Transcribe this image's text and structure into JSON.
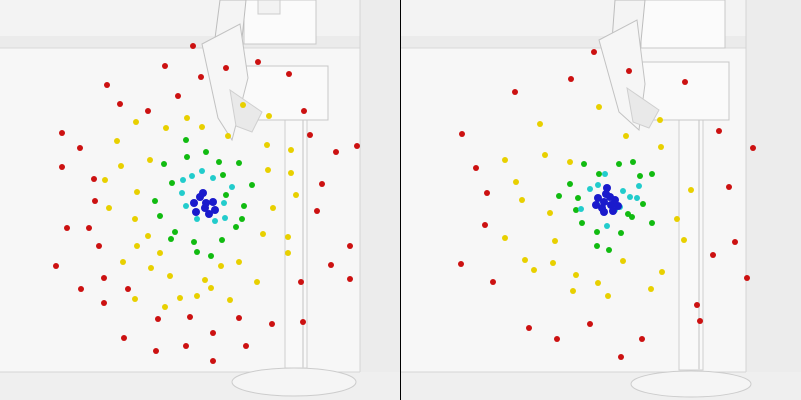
{
  "colors": {
    "background": "#f3f3f3",
    "wall": "#f7f7f7",
    "shadow": "#dcdcdc",
    "divider": "#000000",
    "dot_red": "#cc1111",
    "dot_yellow": "#e8d000",
    "dot_green": "#11bb11",
    "dot_cyan": "#22cccc",
    "dot_blue": "#1a1acc"
  },
  "panels": [
    {
      "name": "left",
      "dots": {
        "red": [
          [
            193,
            46
          ],
          [
            165,
            66
          ],
          [
            201,
            77
          ],
          [
            226,
            68
          ],
          [
            258,
            62
          ],
          [
            289,
            74
          ],
          [
            107,
            85
          ],
          [
            120,
            104
          ],
          [
            178,
            96
          ],
          [
            304,
            111
          ],
          [
            62,
            133
          ],
          [
            80,
            148
          ],
          [
            148,
            111
          ],
          [
            310,
            135
          ],
          [
            357,
            146
          ],
          [
            62,
            167
          ],
          [
            94,
            179
          ],
          [
            336,
            152
          ],
          [
            322,
            184
          ],
          [
            95,
            201
          ],
          [
            317,
            211
          ],
          [
            67,
            228
          ],
          [
            89,
            228
          ],
          [
            350,
            246
          ],
          [
            99,
            246
          ],
          [
            331,
            265
          ],
          [
            56,
            266
          ],
          [
            104,
            278
          ],
          [
            81,
            289
          ],
          [
            350,
            279
          ],
          [
            128,
            289
          ],
          [
            301,
            282
          ],
          [
            104,
            303
          ],
          [
            303,
            322
          ],
          [
            158,
            319
          ],
          [
            190,
            317
          ],
          [
            124,
            338
          ],
          [
            239,
            318
          ],
          [
            213,
            333
          ],
          [
            186,
            346
          ],
          [
            156,
            351
          ],
          [
            246,
            346
          ],
          [
            213,
            361
          ],
          [
            272,
            324
          ]
        ],
        "yellow": [
          [
            243,
            105
          ],
          [
            269,
            116
          ],
          [
            136,
            122
          ],
          [
            187,
            118
          ],
          [
            166,
            128
          ],
          [
            202,
            127
          ],
          [
            228,
            136
          ],
          [
            117,
            141
          ],
          [
            267,
            145
          ],
          [
            291,
            150
          ],
          [
            150,
            160
          ],
          [
            121,
            166
          ],
          [
            268,
            170
          ],
          [
            291,
            173
          ],
          [
            105,
            180
          ],
          [
            137,
            192
          ],
          [
            296,
            195
          ],
          [
            109,
            208
          ],
          [
            273,
            208
          ],
          [
            135,
            219
          ],
          [
            263,
            234
          ],
          [
            148,
            236
          ],
          [
            288,
            237
          ],
          [
            137,
            246
          ],
          [
            123,
            262
          ],
          [
            160,
            253
          ],
          [
            288,
            253
          ],
          [
            151,
            268
          ],
          [
            239,
            262
          ],
          [
            170,
            276
          ],
          [
            221,
            266
          ],
          [
            205,
            280
          ],
          [
            257,
            282
          ],
          [
            135,
            299
          ],
          [
            197,
            296
          ],
          [
            211,
            288
          ],
          [
            180,
            298
          ],
          [
            230,
            300
          ],
          [
            165,
            307
          ]
        ],
        "green": [
          [
            186,
            140
          ],
          [
            206,
            152
          ],
          [
            187,
            157
          ],
          [
            164,
            164
          ],
          [
            219,
            162
          ],
          [
            239,
            163
          ],
          [
            223,
            175
          ],
          [
            172,
            183
          ],
          [
            252,
            185
          ],
          [
            155,
            201
          ],
          [
            160,
            216
          ],
          [
            242,
            219
          ],
          [
            236,
            227
          ],
          [
            175,
            232
          ],
          [
            171,
            239
          ],
          [
            222,
            240
          ],
          [
            194,
            242
          ],
          [
            197,
            252
          ],
          [
            211,
            256
          ],
          [
            244,
            206
          ],
          [
            226,
            195
          ]
        ],
        "cyan": [
          [
            202,
            171
          ],
          [
            192,
            176
          ],
          [
            213,
            178
          ],
          [
            182,
            193
          ],
          [
            232,
            187
          ],
          [
            224,
            203
          ],
          [
            186,
            206
          ],
          [
            197,
            219
          ],
          [
            215,
            221
          ],
          [
            225,
            218
          ],
          [
            183,
            180
          ]
        ],
        "blue": [
          [
            200,
            197
          ],
          [
            206,
            203
          ],
          [
            213,
            202
          ],
          [
            196,
            212
          ],
          [
            209,
            214
          ],
          [
            205,
            208
          ],
          [
            194,
            203
          ],
          [
            215,
            210
          ],
          [
            203,
            193
          ]
        ]
      }
    },
    {
      "name": "right",
      "dots": {
        "red": [
          [
            193,
            52
          ],
          [
            170,
            79
          ],
          [
            228,
            71
          ],
          [
            284,
            82
          ],
          [
            114,
            92
          ],
          [
            61,
            134
          ],
          [
            318,
            131
          ],
          [
            352,
            148
          ],
          [
            75,
            168
          ],
          [
            86,
            193
          ],
          [
            328,
            187
          ],
          [
            84,
            225
          ],
          [
            334,
            242
          ],
          [
            60,
            264
          ],
          [
            92,
            282
          ],
          [
            346,
            278
          ],
          [
            299,
            321
          ],
          [
            128,
            328
          ],
          [
            189,
            324
          ],
          [
            156,
            339
          ],
          [
            241,
            339
          ],
          [
            220,
            357
          ],
          [
            312,
            255
          ],
          [
            296,
            305
          ]
        ],
        "yellow": [
          [
            139,
            124
          ],
          [
            198,
            107
          ],
          [
            259,
            120
          ],
          [
            225,
            136
          ],
          [
            144,
            155
          ],
          [
            169,
            162
          ],
          [
            104,
            160
          ],
          [
            260,
            147
          ],
          [
            115,
            182
          ],
          [
            290,
            190
          ],
          [
            121,
            200
          ],
          [
            276,
            219
          ],
          [
            149,
            213
          ],
          [
            154,
            241
          ],
          [
            283,
            240
          ],
          [
            124,
            260
          ],
          [
            133,
            270
          ],
          [
            152,
            263
          ],
          [
            222,
            261
          ],
          [
            261,
            272
          ],
          [
            175,
            275
          ],
          [
            197,
            283
          ],
          [
            250,
            289
          ],
          [
            172,
            291
          ],
          [
            207,
            296
          ],
          [
            104,
            238
          ]
        ],
        "green": [
          [
            183,
            164
          ],
          [
            198,
            174
          ],
          [
            218,
            164
          ],
          [
            232,
            162
          ],
          [
            169,
            184
          ],
          [
            239,
            176
          ],
          [
            251,
            174
          ],
          [
            175,
            210
          ],
          [
            177,
            198
          ],
          [
            158,
            196
          ],
          [
            242,
            204
          ],
          [
            231,
            217
          ],
          [
            181,
            223
          ],
          [
            196,
            232
          ],
          [
            220,
            233
          ],
          [
            227,
            214
          ],
          [
            251,
            223
          ],
          [
            196,
            246
          ],
          [
            208,
            250
          ]
        ],
        "cyan": [
          [
            204,
            174
          ],
          [
            189,
            189
          ],
          [
            222,
            191
          ],
          [
            238,
            186
          ],
          [
            196,
            204
          ],
          [
            219,
            207
          ],
          [
            229,
            197
          ],
          [
            180,
            209
          ],
          [
            206,
            226
          ],
          [
            214,
            210
          ],
          [
            197,
            185
          ],
          [
            236,
            198
          ]
        ],
        "blue": [
          [
            197,
            198
          ],
          [
            203,
            202
          ],
          [
            210,
            205
          ],
          [
            205,
            194
          ],
          [
            214,
            200
          ],
          [
            201,
            208
          ],
          [
            209,
            197
          ],
          [
            217,
            206
          ],
          [
            195,
            205
          ],
          [
            203,
            212
          ],
          [
            212,
            211
          ],
          [
            206,
            188
          ]
        ]
      }
    }
  ]
}
